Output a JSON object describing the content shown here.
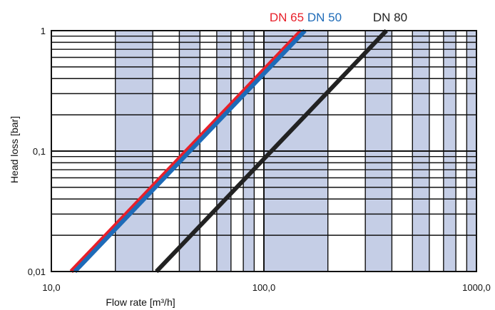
{
  "chart_data": {
    "type": "line",
    "xscale": "log",
    "yscale": "log",
    "xlim": [
      10,
      1000
    ],
    "ylim": [
      0.01,
      1
    ],
    "xlabel": "Flow rate [m³/h]",
    "ylabel": "Head loss [bar]",
    "x_tick_labels": [
      {
        "value": 10,
        "label": "10,0"
      },
      {
        "value": 100,
        "label": "100,0"
      },
      {
        "value": 1000,
        "label": "1000,0"
      }
    ],
    "y_tick_labels": [
      {
        "value": 0.01,
        "label": "0,01"
      },
      {
        "value": 0.1,
        "label": "0,1"
      },
      {
        "value": 1,
        "label": "1"
      }
    ],
    "grid": true,
    "shaded_x_bands": [
      [
        20,
        30
      ],
      [
        40,
        50
      ],
      [
        60,
        70
      ],
      [
        80,
        90
      ],
      [
        100,
        200
      ],
      [
        300,
        400
      ],
      [
        500,
        600
      ],
      [
        700,
        800
      ],
      [
        900,
        1000
      ]
    ],
    "series": [
      {
        "name": "DN 65",
        "color": "#e8202a",
        "x": [
          12.4,
          150
        ],
        "y": [
          0.01,
          1
        ]
      },
      {
        "name": "DN 50",
        "color": "#1e6bb8",
        "x": [
          12.9,
          156
        ],
        "y": [
          0.01,
          1
        ]
      },
      {
        "name": "DN 80",
        "color": "#222222",
        "x": [
          31.2,
          377
        ],
        "y": [
          0.01,
          1
        ]
      }
    ],
    "legend_placement": "top"
  },
  "colors": {
    "band": "#c5cee6",
    "grid": "#111111"
  }
}
